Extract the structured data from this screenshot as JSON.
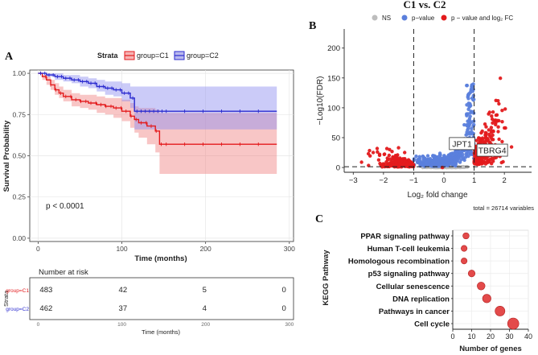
{
  "figure": {
    "panel_a_letter": "A",
    "panel_b_letter": "B",
    "panel_c_letter": "C",
    "volcano_title": "C1 vs. C2"
  },
  "chart_data": [
    {
      "id": "A",
      "type": "line",
      "subtype": "kaplan-meier",
      "legend_title": "Strata",
      "legend_position": "top",
      "xlabel": "Time (months)",
      "ylabel": "Survival Probability",
      "xlim": [
        -10,
        305
      ],
      "ylim": [
        -0.02,
        1.02
      ],
      "xticks": [
        "0",
        "100",
        "200",
        "300"
      ],
      "yticks": [
        "0.00",
        "0.25",
        "0.50",
        "0.75",
        "1.00"
      ],
      "pvalue_label": "p < 0.0001",
      "series": [
        {
          "name": "group=C1",
          "color": "#e31a1c",
          "x": [
            0,
            5,
            10,
            15,
            20,
            25,
            30,
            40,
            50,
            60,
            70,
            80,
            90,
            100,
            110,
            115,
            120,
            130,
            140,
            145,
            200,
            285
          ],
          "y": [
            1.0,
            0.98,
            0.96,
            0.93,
            0.9,
            0.88,
            0.86,
            0.84,
            0.83,
            0.82,
            0.81,
            0.8,
            0.79,
            0.77,
            0.74,
            0.72,
            0.7,
            0.68,
            0.65,
            0.57,
            0.57,
            0.57
          ],
          "ci_lower": [
            1.0,
            0.96,
            0.93,
            0.9,
            0.87,
            0.85,
            0.83,
            0.8,
            0.79,
            0.78,
            0.76,
            0.75,
            0.73,
            0.71,
            0.67,
            0.64,
            0.61,
            0.57,
            0.52,
            0.39,
            0.39,
            0.39
          ],
          "ci_upper": [
            1.0,
            0.99,
            0.98,
            0.96,
            0.94,
            0.92,
            0.9,
            0.88,
            0.87,
            0.87,
            0.86,
            0.85,
            0.85,
            0.84,
            0.82,
            0.8,
            0.79,
            0.79,
            0.78,
            0.76,
            0.76,
            0.76
          ]
        },
        {
          "name": "group=C2",
          "color": "#2b2bcf",
          "x": [
            0,
            10,
            20,
            30,
            40,
            50,
            60,
            70,
            80,
            90,
            100,
            110,
            115,
            285
          ],
          "y": [
            1.0,
            0.99,
            0.98,
            0.97,
            0.96,
            0.95,
            0.94,
            0.92,
            0.91,
            0.9,
            0.88,
            0.85,
            0.77,
            0.77
          ],
          "ci_lower": [
            1.0,
            0.98,
            0.96,
            0.95,
            0.94,
            0.92,
            0.91,
            0.89,
            0.87,
            0.86,
            0.83,
            0.79,
            0.66,
            0.66
          ],
          "ci_upper": [
            1.0,
            1.0,
            1.0,
            0.99,
            0.99,
            0.98,
            0.97,
            0.96,
            0.95,
            0.95,
            0.94,
            0.92,
            0.92,
            0.92
          ]
        }
      ]
    },
    {
      "id": "A-risk",
      "type": "table",
      "title": "Number at risk",
      "ylabel": "Strata",
      "xlabel": "Time (months)",
      "xticks": [
        "0",
        "100",
        "200",
        "300"
      ],
      "rows": [
        {
          "name": "group=C1",
          "color": "#e31a1c",
          "values": [
            "483",
            "42",
            "5",
            "0"
          ]
        },
        {
          "name": "group=C2",
          "color": "#2b2bcf",
          "values": [
            "462",
            "37",
            "4",
            "0"
          ]
        }
      ]
    },
    {
      "id": "B",
      "type": "scatter",
      "subtype": "volcano",
      "title": "C1 vs. C2",
      "legend": [
        {
          "label": "NS",
          "color": "#bdbdbd"
        },
        {
          "label": "p−value",
          "color": "#5b7fdc"
        },
        {
          "label": "p − value and log₂ FC",
          "color": "#e31a1c"
        }
      ],
      "xlabel": "Log₂ fold change",
      "ylabel": "−Log10(FDR)",
      "xlim": [
        -3.3,
        2.9
      ],
      "ylim": [
        -8,
        232
      ],
      "xticks": [
        -3,
        -2,
        -1,
        0,
        1,
        2
      ],
      "yticks": [
        0,
        50,
        100,
        150,
        200
      ],
      "fc_cutoffs": [
        -1,
        1
      ],
      "p_cutoff": 1.3,
      "caption": "total = 26714 variables",
      "labelled_points": [
        {
          "label": "JPT1",
          "x": 0.6,
          "y": 38
        },
        {
          "label": "TBRG4",
          "x": 1.6,
          "y": 27
        }
      ]
    },
    {
      "id": "C",
      "type": "scatter",
      "subtype": "dot-plot",
      "xlabel": "Number of genes",
      "ylabel": "KEGG Pathway",
      "xlim": [
        0,
        40
      ],
      "xticks": [
        0,
        10,
        20,
        30,
        40
      ],
      "categories": [
        "PPAR signaling pathway",
        "Human T-cell leukemia",
        "Homologous recombination",
        "p53 signaling pathway",
        "Cellular senescence",
        "DNA replication",
        "Pathways in cancer",
        "Cell cycle"
      ],
      "values": [
        7,
        6,
        6,
        10,
        15,
        18,
        25,
        32
      ]
    }
  ]
}
